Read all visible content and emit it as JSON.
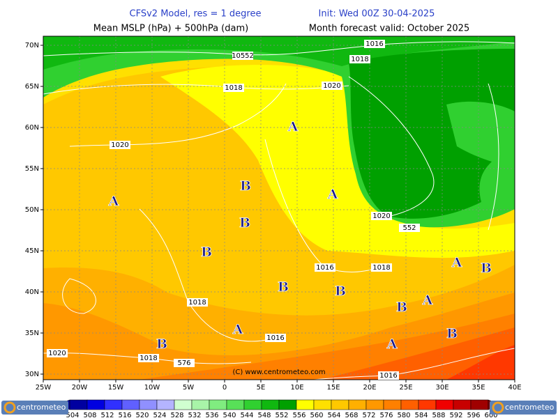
{
  "header": {
    "model": "CFSv2 Model, res = 1 degree",
    "init": "Init: Wed 00Z 30-04-2025",
    "fields": "Mean MSLP (hPa) + 500hPa (dam)",
    "valid": "Month forecast valid: October 2025"
  },
  "axes": {
    "lat_labels": [
      "70N",
      "65N",
      "60N",
      "55N",
      "50N",
      "45N",
      "40N",
      "35N",
      "30N"
    ],
    "lon_labels": [
      "25W",
      "20W",
      "15W",
      "10W",
      "5W",
      "0",
      "5E",
      "10E",
      "15E",
      "20E",
      "25E",
      "30E",
      "35E",
      "40E"
    ]
  },
  "contour_labels": [
    "10552",
    "1016",
    "1018",
    "1018",
    "1020",
    "1020",
    "1020",
    "552",
    "1016",
    "1018",
    "1018",
    "1016",
    "1020",
    "1018",
    "576",
    "1016"
  ],
  "pressure_centers": [
    "A",
    "A",
    "A",
    "A",
    "A",
    "A",
    "A",
    "B",
    "B",
    "B",
    "B",
    "B",
    "B",
    "B",
    "B",
    "B"
  ],
  "copyright": "(C) www.centrometeo.com",
  "colorbar": {
    "labels": [
      "504",
      "508",
      "512",
      "516",
      "520",
      "524",
      "528",
      "532",
      "536",
      "540",
      "544",
      "548",
      "552",
      "556",
      "560",
      "564",
      "568",
      "572",
      "576",
      "580",
      "584",
      "588",
      "592",
      "596",
      "600"
    ],
    "colors": [
      "#0000a0",
      "#0000e0",
      "#3030ff",
      "#6060ff",
      "#9090ff",
      "#b4b4ff",
      "#d0ffd0",
      "#a8f4a8",
      "#80ec80",
      "#58e058",
      "#30d030",
      "#10b810",
      "#00a000",
      "#ffff00",
      "#ffe000",
      "#ffc800",
      "#ffb000",
      "#ff9800",
      "#ff8000",
      "#ff6000",
      "#ff3800",
      "#f00000",
      "#c80000",
      "#a00000",
      "#800000"
    ]
  },
  "logos": [
    "centrometeo",
    "centrometeo"
  ]
}
